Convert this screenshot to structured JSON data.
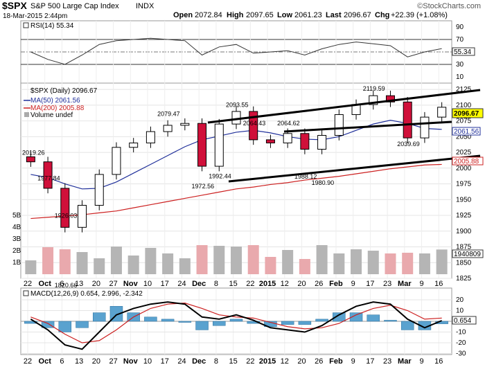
{
  "header": {
    "symbol": "$SPX",
    "name": "S&P 500 Large Cap Index",
    "exchange": "INDX",
    "date": "18-Mar-2015 2:44pm",
    "source": "©StockCharts.com",
    "open_label": "Open",
    "open": "2072.84",
    "high_label": "High",
    "high": "2097.65",
    "low_label": "Low",
    "low": "2061.23",
    "last_label": "Last",
    "last": "2096.67",
    "chg_label": "Chg",
    "chg": "+22.39 (+1.08%)"
  },
  "rsi": {
    "label": "RSI(14) 55.34",
    "value_box": "55.34",
    "ticks": [
      "90",
      "70",
      "50",
      "30",
      "10"
    ]
  },
  "price_panel": {
    "legend": "$SPX (Daily) 2096.67",
    "ma50_label": "MA(50) 2061.56",
    "ma200_label": "MA(200) 2005.88",
    "volume_label": "Volume undef",
    "last_box": "2096.67",
    "ma50_box": "2061.56",
    "ma200_box": "2005.88",
    "volume_box": "1940809",
    "price_ticks": [
      "2125",
      "2100",
      "2075",
      "2050",
      "2025",
      "2000",
      "1975",
      "1950",
      "1925",
      "1900",
      "1875",
      "1850",
      "1825"
    ],
    "volume_ticks": [
      "5B",
      "4B",
      "3B",
      "2B",
      "1B"
    ],
    "annotations": [
      "2019.26",
      "1977.84",
      "1926.03",
      "1820.66",
      "2079.47",
      "2093.55",
      "1972.56",
      "1992.44",
      "2064.43",
      "2064.62",
      "1988.12",
      "1980.90",
      "2119.59",
      "2039.69"
    ]
  },
  "macd": {
    "label": "MACD(12,26,9) 0.654, 2.996, -2.342",
    "value_box": "0.654",
    "ticks": [
      "20",
      "10",
      "0",
      "-10",
      "-20",
      "-30"
    ]
  },
  "x_axis": {
    "labels": [
      "22",
      "Oct",
      "6",
      "13",
      "20",
      "27",
      "Nov",
      "10",
      "17",
      "24",
      "Dec",
      "8",
      "15",
      "22",
      "2015",
      "12",
      "20",
      "26",
      "Feb",
      "9",
      "17",
      "23",
      "Mar",
      "9",
      "16"
    ]
  },
  "colors": {
    "ma50": "#1f2f9a",
    "ma200": "#cc1f1f",
    "down_candle": "#d0103a",
    "up_candle": "#ffffff",
    "macd_hist": "#5aa2cf",
    "volume_down": "#e9a9ad",
    "volume_up": "#b5b5b5",
    "last_box": "#ffff00"
  },
  "chart_data": {
    "type": "candlestick",
    "title": "$SPX S&P 500 Large Cap Index INDX",
    "x": [
      "Sep 22",
      "Oct 6",
      "Oct 13",
      "Oct 20",
      "Oct 27",
      "Nov 3",
      "Nov 10",
      "Nov 17",
      "Nov 24",
      "Dec 1",
      "Dec 8",
      "Dec 15",
      "Dec 22",
      "Jan 2",
      "Jan 12",
      "Jan 20",
      "Jan 26",
      "Feb 2",
      "Feb 9",
      "Feb 17",
      "Feb 23",
      "Mar 2",
      "Mar 9",
      "Mar 16",
      "Mar 18"
    ],
    "close": [
      2010,
      1968,
      1906,
      1941,
      1990,
      2033,
      2040,
      2058,
      2068,
      2071,
      2003,
      2070,
      2090,
      2045,
      2040,
      2055,
      2030,
      2052,
      2085,
      2101,
      2115,
      2105,
      2048,
      2081,
      2096.67
    ],
    "ma50": [
      1990,
      1985,
      1975,
      1967,
      1968,
      1978,
      1992,
      2006,
      2020,
      2034,
      2045,
      2051,
      2057,
      2060,
      2056,
      2050,
      2046,
      2045,
      2050,
      2060,
      2070,
      2076,
      2071,
      2063,
      2061.56
    ],
    "ma200": [
      1920,
      1922,
      1924,
      1926,
      1929,
      1932,
      1937,
      1942,
      1947,
      1952,
      1957,
      1962,
      1967,
      1970,
      1974,
      1977,
      1981,
      1984,
      1987,
      1991,
      1995,
      1999,
      2002,
      2005,
      2005.88
    ],
    "series": [
      {
        "name": "MA(50)",
        "values": [
          1990,
          1985,
          1975,
          1967,
          1968,
          1978,
          1992,
          2006,
          2020,
          2034,
          2045,
          2051,
          2057,
          2060,
          2056,
          2050,
          2046,
          2045,
          2050,
          2060,
          2070,
          2076,
          2071,
          2063,
          2061.56
        ]
      },
      {
        "name": "MA(200)",
        "values": [
          1920,
          1922,
          1924,
          1926,
          1929,
          1932,
          1937,
          1942,
          1947,
          1952,
          1957,
          1962,
          1967,
          1970,
          1974,
          1977,
          1981,
          1984,
          1987,
          1991,
          1995,
          1999,
          2002,
          2005,
          2005.88
        ]
      }
    ],
    "rsi": [
      50,
      38,
      30,
      45,
      62,
      68,
      70,
      72,
      70,
      68,
      45,
      58,
      62,
      48,
      50,
      52,
      45,
      55,
      62,
      66,
      63,
      60,
      42,
      50,
      55.34
    ],
    "macd": [
      2,
      -8,
      -22,
      -26,
      -10,
      6,
      12,
      16,
      18,
      16,
      4,
      2,
      6,
      1,
      -6,
      -8,
      -10,
      -4,
      6,
      14,
      18,
      16,
      2,
      -6,
      0.654
    ],
    "macd_signal": [
      4,
      -2,
      -12,
      -20,
      -18,
      -8,
      4,
      12,
      16,
      17,
      12,
      6,
      4,
      3,
      -1,
      -5,
      -7,
      -6,
      -2,
      6,
      12,
      15,
      10,
      2,
      2.996
    ],
    "ylim": [
      1825,
      2135
    ],
    "grid": true
  }
}
